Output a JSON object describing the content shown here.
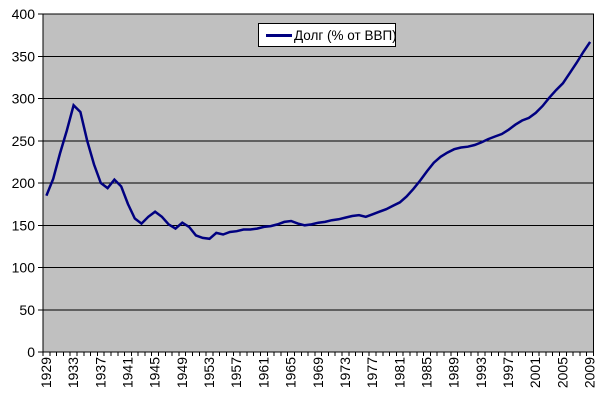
{
  "chart": {
    "legend": {
      "label": "Долг (% от ВВП)"
    },
    "colors": {
      "series": "#000080",
      "plot_bg": "#c0c0c0",
      "grid": "#000000",
      "axis": "#000000",
      "text": "#000000",
      "legend_bg": "#ffffff",
      "outer_bg": "#ffffff"
    }
  },
  "chart_data": {
    "type": "line",
    "title": "",
    "xlabel": "",
    "ylabel": "",
    "x": [
      1929,
      1930,
      1931,
      1932,
      1933,
      1934,
      1935,
      1936,
      1937,
      1938,
      1939,
      1940,
      1941,
      1942,
      1943,
      1944,
      1945,
      1946,
      1947,
      1948,
      1949,
      1950,
      1951,
      1952,
      1953,
      1954,
      1955,
      1956,
      1957,
      1958,
      1959,
      1960,
      1961,
      1962,
      1963,
      1964,
      1965,
      1966,
      1967,
      1968,
      1969,
      1970,
      1971,
      1972,
      1973,
      1974,
      1975,
      1976,
      1977,
      1978,
      1979,
      1980,
      1981,
      1982,
      1983,
      1984,
      1985,
      1986,
      1987,
      1988,
      1989,
      1990,
      1991,
      1992,
      1993,
      1994,
      1995,
      1996,
      1997,
      1998,
      1999,
      2000,
      2001,
      2002,
      2003,
      2004,
      2005,
      2006,
      2007,
      2008,
      2009
    ],
    "series": [
      {
        "name": "Долг (% от ВВП)",
        "values": [
          185,
          205,
          235,
          262,
          292,
          284,
          250,
          222,
          200,
          194,
          204,
          196,
          175,
          158,
          152,
          160,
          166,
          160,
          151,
          146,
          153,
          148,
          138,
          135,
          134,
          141,
          139,
          142,
          143,
          145,
          145,
          146,
          148,
          149,
          151,
          154,
          155,
          152,
          150,
          151,
          153,
          154,
          156,
          157,
          159,
          161,
          162,
          160,
          163,
          166,
          169,
          173,
          177,
          184,
          193,
          203,
          214,
          224,
          231,
          236,
          240,
          242,
          243,
          245,
          248,
          252,
          255,
          258,
          263,
          269,
          274,
          277,
          283,
          291,
          301,
          310,
          318,
          330,
          342,
          355,
          367
        ]
      }
    ],
    "ylim": [
      0,
      400
    ],
    "ytick_step": 50,
    "xtick_label_every": 4,
    "x_label_rotation": -90,
    "grid": true,
    "legend_position": "top-center"
  }
}
